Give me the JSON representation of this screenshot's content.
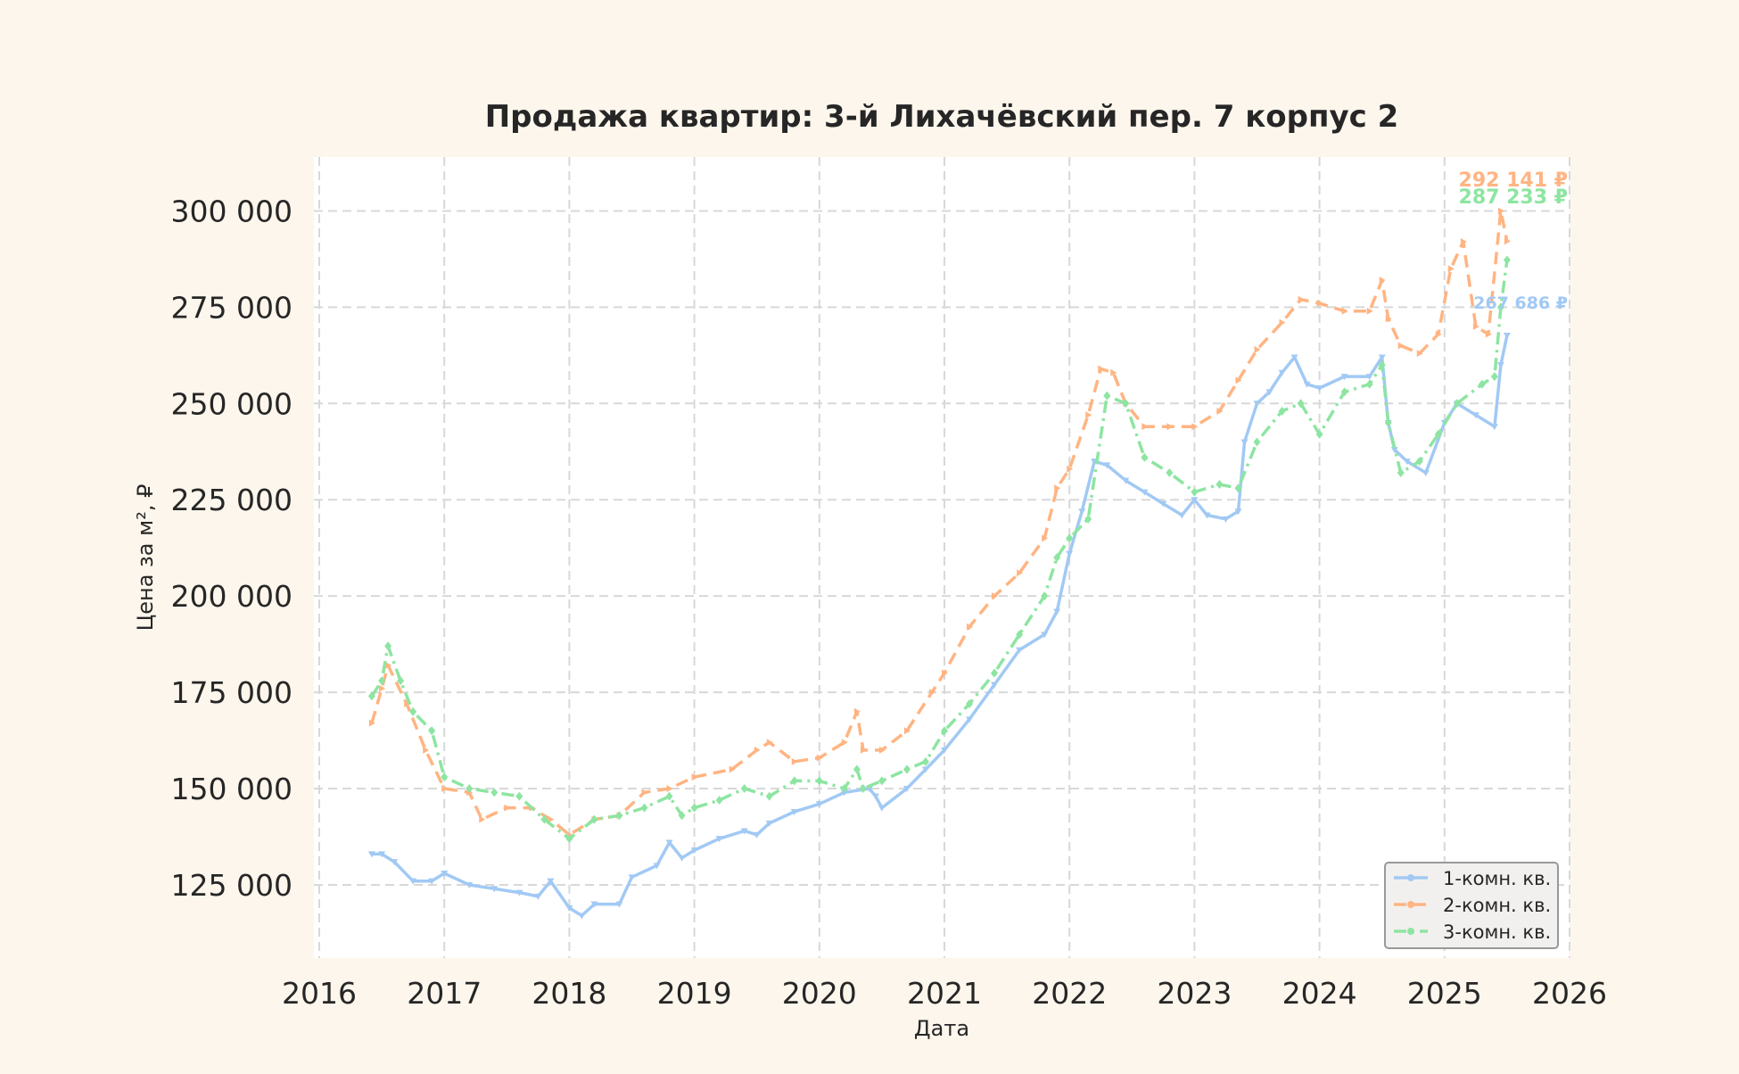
{
  "chart_data": {
    "type": "line",
    "title": "Продажа квартир: 3-й Лихачёвский пер. 7 корпус 2",
    "xlabel": "Дата",
    "ylabel": "Цена за м², ₽",
    "x_ticks": [
      "2016",
      "2017",
      "2018",
      "2019",
      "2020",
      "2021",
      "2022",
      "2023",
      "2024",
      "2025",
      "2026"
    ],
    "x_tick_values": [
      2016,
      2017,
      2018,
      2019,
      2020,
      2021,
      2022,
      2023,
      2024,
      2025,
      2026
    ],
    "xlim": [
      2016,
      2026
    ],
    "y_ticks": [
      "125 000",
      "150 000",
      "175 000",
      "200 000",
      "225 000",
      "250 000",
      "275 000",
      "300 000"
    ],
    "y_tick_values": [
      125000,
      150000,
      175000,
      200000,
      225000,
      250000,
      275000,
      300000
    ],
    "ylim": [
      106000,
      314000
    ],
    "grid": true,
    "legend_position": "lower-right",
    "series": [
      {
        "name": "1-комн. кв.",
        "color": "#a1c9f4",
        "dash": "solid",
        "marker": "triangle-down",
        "x": [
          2016.42,
          2016.5,
          2016.6,
          2016.75,
          2016.9,
          2017.0,
          2017.2,
          2017.4,
          2017.6,
          2017.75,
          2017.85,
          2018.0,
          2018.1,
          2018.2,
          2018.4,
          2018.5,
          2018.7,
          2018.8,
          2018.9,
          2019.0,
          2019.2,
          2019.4,
          2019.5,
          2019.6,
          2019.8,
          2020.0,
          2020.2,
          2020.4,
          2020.45,
          2020.5,
          2020.7,
          2020.85,
          2021.0,
          2021.2,
          2021.4,
          2021.6,
          2021.8,
          2021.9,
          2022.0,
          2022.1,
          2022.2,
          2022.3,
          2022.45,
          2022.6,
          2022.75,
          2022.9,
          2023.0,
          2023.1,
          2023.25,
          2023.35,
          2023.4,
          2023.5,
          2023.6,
          2023.7,
          2023.8,
          2023.9,
          2024.0,
          2024.2,
          2024.4,
          2024.5,
          2024.55,
          2024.6,
          2024.7,
          2024.85,
          2025.0,
          2025.1,
          2025.25,
          2025.4,
          2025.45,
          2025.5
        ],
        "y": [
          133000,
          133000,
          131000,
          126000,
          126000,
          128000,
          125000,
          124000,
          123000,
          122000,
          126000,
          119000,
          117000,
          120000,
          120000,
          127000,
          130000,
          136000,
          132000,
          134000,
          137000,
          139000,
          138000,
          141000,
          144000,
          146000,
          149000,
          150000,
          148000,
          145000,
          150000,
          155000,
          160000,
          168000,
          177000,
          186000,
          190000,
          196000,
          211000,
          222000,
          235000,
          234000,
          230000,
          227000,
          224000,
          221000,
          225000,
          221000,
          220000,
          222000,
          240000,
          250000,
          253000,
          258000,
          262000,
          255000,
          254000,
          257000,
          257000,
          262000,
          245000,
          238000,
          235000,
          232000,
          245000,
          250000,
          247000,
          244000,
          260000,
          267686
        ]
      },
      {
        "name": "2-комн. кв.",
        "color": "#ffb482",
        "dash": "dashed",
        "marker": "triangle-right",
        "x": [
          2016.42,
          2016.5,
          2016.55,
          2016.7,
          2016.85,
          2017.0,
          2017.2,
          2017.3,
          2017.5,
          2017.7,
          2017.85,
          2018.0,
          2018.2,
          2018.4,
          2018.6,
          2018.8,
          2019.0,
          2019.3,
          2019.5,
          2019.6,
          2019.8,
          2020.0,
          2020.2,
          2020.3,
          2020.35,
          2020.5,
          2020.7,
          2020.9,
          2021.0,
          2021.2,
          2021.4,
          2021.6,
          2021.8,
          2021.9,
          2022.0,
          2022.15,
          2022.25,
          2022.35,
          2022.45,
          2022.6,
          2022.8,
          2023.0,
          2023.2,
          2023.35,
          2023.5,
          2023.7,
          2023.85,
          2024.0,
          2024.2,
          2024.4,
          2024.5,
          2024.55,
          2024.65,
          2024.8,
          2024.95,
          2025.05,
          2025.15,
          2025.25,
          2025.35,
          2025.45,
          2025.5
        ],
        "y": [
          167000,
          176000,
          182000,
          172000,
          160000,
          150000,
          149000,
          142000,
          145000,
          145000,
          142000,
          138000,
          142000,
          143000,
          149000,
          150000,
          153000,
          155000,
          160000,
          162000,
          157000,
          158000,
          162000,
          170000,
          160000,
          160000,
          165000,
          175000,
          180000,
          192000,
          200000,
          206000,
          215000,
          228000,
          233000,
          247000,
          259000,
          258000,
          250000,
          244000,
          244000,
          244000,
          248000,
          256000,
          264000,
          271000,
          277000,
          276000,
          274000,
          274000,
          282000,
          272000,
          265000,
          263000,
          268000,
          285000,
          292000,
          270000,
          268000,
          300000,
          292141
        ]
      },
      {
        "name": "3-комн. кв.",
        "color": "#8de5a1",
        "dash": "dashdot",
        "marker": "diamond",
        "x": [
          2016.42,
          2016.5,
          2016.55,
          2016.65,
          2016.75,
          2016.9,
          2017.0,
          2017.2,
          2017.4,
          2017.6,
          2017.8,
          2018.0,
          2018.2,
          2018.4,
          2018.6,
          2018.8,
          2018.9,
          2019.0,
          2019.2,
          2019.4,
          2019.6,
          2019.8,
          2020.0,
          2020.2,
          2020.3,
          2020.35,
          2020.5,
          2020.7,
          2020.85,
          2021.0,
          2021.2,
          2021.4,
          2021.6,
          2021.8,
          2021.9,
          2022.0,
          2022.15,
          2022.3,
          2022.45,
          2022.6,
          2022.8,
          2023.0,
          2023.2,
          2023.35,
          2023.5,
          2023.7,
          2023.85,
          2024.0,
          2024.2,
          2024.4,
          2024.5,
          2024.55,
          2024.65,
          2024.8,
          2024.95,
          2025.1,
          2025.3,
          2025.4,
          2025.45,
          2025.5
        ],
        "y": [
          174000,
          178000,
          187000,
          178000,
          170000,
          165000,
          153000,
          150000,
          149000,
          148000,
          142000,
          137000,
          142000,
          143000,
          145000,
          148000,
          143000,
          145000,
          147000,
          150000,
          148000,
          152000,
          152000,
          150000,
          155000,
          150000,
          152000,
          155000,
          157000,
          165000,
          172000,
          180000,
          190000,
          200000,
          210000,
          215000,
          220000,
          252000,
          250000,
          236000,
          232000,
          227000,
          229000,
          228000,
          240000,
          248000,
          250000,
          242000,
          253000,
          255000,
          260000,
          245000,
          232000,
          235000,
          242000,
          250000,
          255000,
          257000,
          275000,
          287233
        ]
      }
    ],
    "annotations": [
      {
        "text": "292 141 ₽",
        "series": "2-комн. кв.",
        "value": 292141,
        "color": "#ffb482"
      },
      {
        "text": "287 233 ₽",
        "series": "3-комн. кв.",
        "value": 287233,
        "color": "#8de5a1"
      },
      {
        "text": "267 686 ₽",
        "series": "1-комн. кв.",
        "value": 267686,
        "color": "#a1c9f4"
      }
    ],
    "colors": {
      "background": "#fdf6ec",
      "plot_background": "#ffffff",
      "grid": "#d8d8d8",
      "text": "#262626",
      "legend_border": "#999999"
    }
  }
}
